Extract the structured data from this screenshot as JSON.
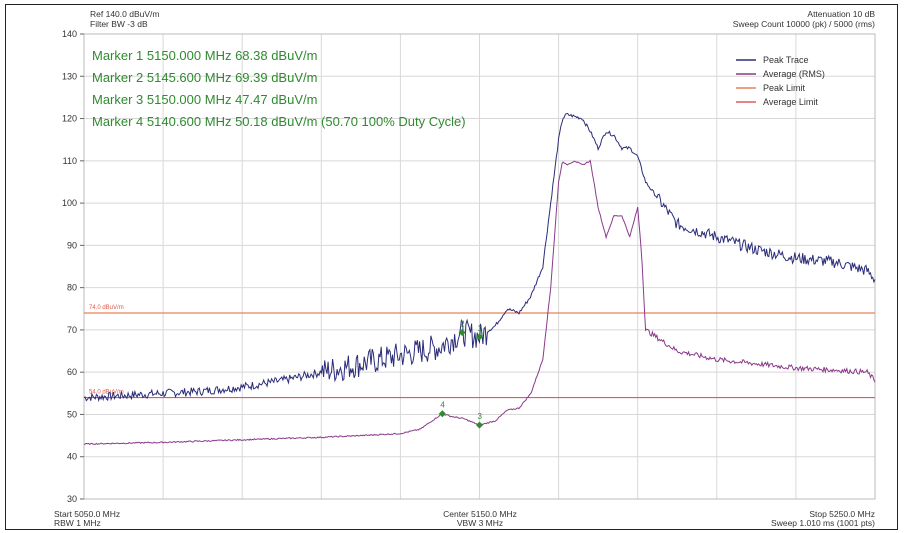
{
  "header": {
    "ref": "Ref 140.0 dBuV/m",
    "filter_bw": "Filter BW -3 dB",
    "attenuation": "Attenuation 10 dB",
    "sweep_count": "Sweep Count 10000 (pk) / 5000 (rms)"
  },
  "markers": [
    {
      "label": "Marker 1 5150.000 MHz 68.38 dBuV/m",
      "id": "1",
      "x": 5150.0,
      "y": 68.38,
      "trace": "peak"
    },
    {
      "label": "Marker 2 5145.600 MHz 69.39 dBuV/m",
      "id": "2",
      "x": 5145.6,
      "y": 69.39,
      "trace": "peak"
    },
    {
      "label": "Marker 3 5150.000 MHz 47.47 dBuV/m",
      "id": "3",
      "x": 5150.0,
      "y": 47.47,
      "trace": "avg"
    },
    {
      "label": "Marker 4 5140.600 MHz 50.18 dBuV/m (50.70 100% Duty Cycle)",
      "id": "4",
      "x": 5140.6,
      "y": 50.18,
      "trace": "avg"
    }
  ],
  "legend": [
    "Peak Trace",
    "Average (RMS)",
    "Peak Limit",
    "Average Limit"
  ],
  "footer": {
    "start": "Start 5050.0 MHz",
    "rbw": "RBW 1 MHz",
    "center": "Center 5150.0 MHz",
    "vbw": "VBW 3 MHz",
    "stop": "Stop 5250.0 MHz",
    "sweep": "Sweep 1.010 ms (1001 pts)"
  },
  "colors": {
    "peak_trace": "#2b2d7a",
    "average_trace": "#8b3a8b",
    "peak_limit": "#e8825a",
    "average_limit": "#e05a5a",
    "marker": "#2e8b2e"
  },
  "chart_data": {
    "type": "line",
    "xlim": [
      5050,
      5250
    ],
    "ylim": [
      30,
      140
    ],
    "yticks": [
      "30",
      "40",
      "50",
      "60",
      "70",
      "80",
      "90",
      "100",
      "110",
      "120",
      "130",
      "140"
    ],
    "grid": true,
    "legend_position": "top-right",
    "limits": [
      {
        "name": "Peak Limit",
        "label": "74.0 dBuV/m",
        "value": 74.0
      },
      {
        "name": "Average Limit",
        "label": "54.0 dBuV/m",
        "value": 54.0
      }
    ],
    "series": [
      {
        "name": "Peak Trace",
        "x": [
          5050,
          5060,
          5070,
          5080,
          5090,
          5100,
          5110,
          5120,
          5130,
          5140,
          5145.6,
          5150,
          5154,
          5157,
          5160,
          5163,
          5166,
          5168,
          5170,
          5171,
          5172,
          5174,
          5176,
          5178,
          5180,
          5182,
          5184,
          5186,
          5188,
          5190,
          5192,
          5200,
          5210,
          5220,
          5230,
          5240,
          5248,
          5250
        ],
        "y": [
          54,
          54.5,
          55,
          55.5,
          56.5,
          58,
          60,
          62,
          64,
          66,
          69.39,
          68.38,
          71,
          75,
          74,
          78,
          85,
          100,
          115,
          120,
          121,
          120.5,
          120,
          117,
          113,
          117,
          116,
          113,
          113,
          111,
          105,
          95,
          92,
          89,
          87,
          86,
          84,
          82
        ]
      },
      {
        "name": "Average (RMS)",
        "x": [
          5050,
          5060,
          5070,
          5080,
          5090,
          5100,
          5110,
          5120,
          5130,
          5135,
          5138,
          5140.6,
          5143,
          5146,
          5150,
          5154,
          5157,
          5160,
          5163,
          5166,
          5168,
          5170,
          5171,
          5172,
          5174,
          5176,
          5178,
          5180,
          5182,
          5184,
          5186,
          5188,
          5190,
          5191,
          5192,
          5200,
          5210,
          5220,
          5230,
          5240,
          5248,
          5250
        ],
        "y": [
          43,
          43.2,
          43.4,
          43.7,
          44,
          44.3,
          44.6,
          45,
          45.5,
          46.5,
          48.5,
          50.18,
          49.5,
          49,
          47.47,
          48.5,
          51,
          51.5,
          55,
          63,
          80,
          105,
          110,
          109,
          110,
          109,
          110,
          99,
          92,
          97,
          97,
          92,
          99,
          88,
          70,
          65,
          63,
          62,
          61,
          60.5,
          60,
          58
        ]
      }
    ]
  }
}
